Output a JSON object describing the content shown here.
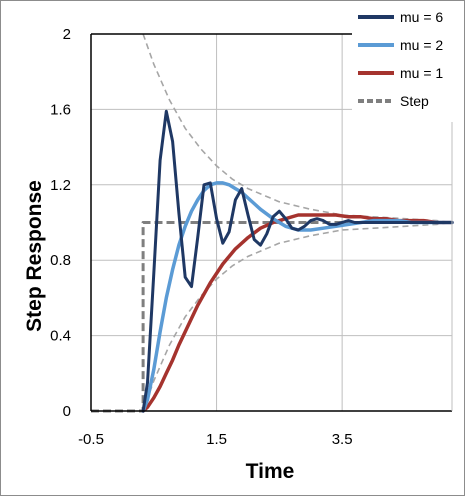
{
  "chart_data": {
    "type": "line",
    "xlabel": "Time",
    "ylabel": "Step Response",
    "xlim": [
      -0.5,
      5.25
    ],
    "ylim": [
      0,
      2
    ],
    "x_ticks": [
      "-0.5",
      "1.5",
      "3.5"
    ],
    "y_ticks": [
      "0",
      "0.4",
      "0.8",
      "1.2",
      "1.6",
      "2"
    ],
    "grid": true,
    "legend_position": "top-right",
    "colors": {
      "mu6": "#1f3864",
      "mu2": "#5b9bd5",
      "mu1": "#a5332e",
      "step": "#7f7f7f",
      "envelope": "#a6a6a6"
    },
    "series": [
      {
        "name": "mu = 6",
        "x": [
          0.33,
          0.4,
          0.5,
          0.6,
          0.7,
          0.8,
          0.9,
          1.0,
          1.1,
          1.2,
          1.3,
          1.4,
          1.5,
          1.6,
          1.7,
          1.8,
          1.9,
          2.0,
          2.1,
          2.2,
          2.3,
          2.4,
          2.5,
          2.6,
          2.7,
          2.8,
          2.9,
          3.0,
          3.1,
          3.2,
          3.3,
          3.4,
          3.5,
          3.6,
          3.7,
          3.8,
          3.9,
          4.0,
          4.2,
          4.4,
          4.6,
          4.8,
          5.0,
          5.25
        ],
        "y": [
          0.0,
          0.15,
          0.73,
          1.33,
          1.59,
          1.43,
          1.05,
          0.71,
          0.66,
          0.92,
          1.2,
          1.21,
          1.02,
          0.89,
          0.95,
          1.12,
          1.18,
          1.04,
          0.91,
          0.88,
          0.94,
          1.03,
          1.06,
          1.02,
          0.97,
          0.96,
          0.98,
          1.01,
          1.02,
          1.01,
          0.99,
          0.99,
          1.0,
          1.01,
          1.0,
          1.0,
          1.0,
          1.0,
          1.0,
          1.0,
          1.0,
          1.0,
          1.0,
          1.0
        ]
      },
      {
        "name": "mu = 2",
        "x": [
          0.33,
          0.4,
          0.5,
          0.6,
          0.7,
          0.8,
          0.9,
          1.0,
          1.1,
          1.2,
          1.3,
          1.4,
          1.5,
          1.6,
          1.7,
          1.8,
          1.9,
          2.0,
          2.2,
          2.4,
          2.6,
          2.8,
          3.0,
          3.2,
          3.4,
          3.6,
          3.8,
          4.0,
          4.2,
          4.4,
          4.6,
          4.8,
          5.0,
          5.25
        ],
        "y": [
          0.0,
          0.06,
          0.22,
          0.42,
          0.6,
          0.75,
          0.88,
          0.98,
          1.06,
          1.12,
          1.17,
          1.2,
          1.21,
          1.21,
          1.2,
          1.18,
          1.16,
          1.13,
          1.07,
          1.02,
          0.98,
          0.96,
          0.96,
          0.97,
          0.98,
          0.99,
          1.0,
          1.01,
          1.01,
          1.01,
          1.0,
          1.0,
          1.0,
          1.0
        ]
      },
      {
        "name": "mu = 1",
        "x": [
          0.33,
          0.4,
          0.5,
          0.6,
          0.7,
          0.8,
          0.9,
          1.0,
          1.2,
          1.4,
          1.6,
          1.8,
          2.0,
          2.2,
          2.4,
          2.6,
          2.8,
          3.0,
          3.2,
          3.4,
          3.6,
          3.8,
          4.0,
          4.2,
          4.4,
          4.6,
          4.8,
          5.0,
          5.25
        ],
        "y": [
          0.0,
          0.02,
          0.07,
          0.13,
          0.2,
          0.27,
          0.35,
          0.42,
          0.56,
          0.68,
          0.78,
          0.86,
          0.92,
          0.97,
          1.0,
          1.02,
          1.04,
          1.04,
          1.04,
          1.04,
          1.03,
          1.03,
          1.02,
          1.02,
          1.01,
          1.01,
          1.01,
          1.0,
          1.0
        ]
      },
      {
        "name": "Step",
        "x": [
          -0.5,
          0.33,
          0.33,
          5.25
        ],
        "y": [
          0.0,
          0.0,
          1.0,
          1.0
        ]
      }
    ],
    "envelope": {
      "x": [
        0.33,
        0.5,
        0.75,
        1.0,
        1.25,
        1.5,
        1.75,
        2.0,
        2.5,
        3.0,
        3.5,
        4.0,
        4.5,
        5.0,
        5.25
      ],
      "upper": [
        2.0,
        1.84,
        1.65,
        1.5,
        1.39,
        1.3,
        1.23,
        1.18,
        1.11,
        1.07,
        1.04,
        1.03,
        1.02,
        1.01,
        1.0
      ],
      "lower": [
        0.0,
        0.16,
        0.35,
        0.5,
        0.61,
        0.7,
        0.77,
        0.82,
        0.89,
        0.93,
        0.96,
        0.97,
        0.98,
        0.99,
        1.0
      ]
    }
  }
}
